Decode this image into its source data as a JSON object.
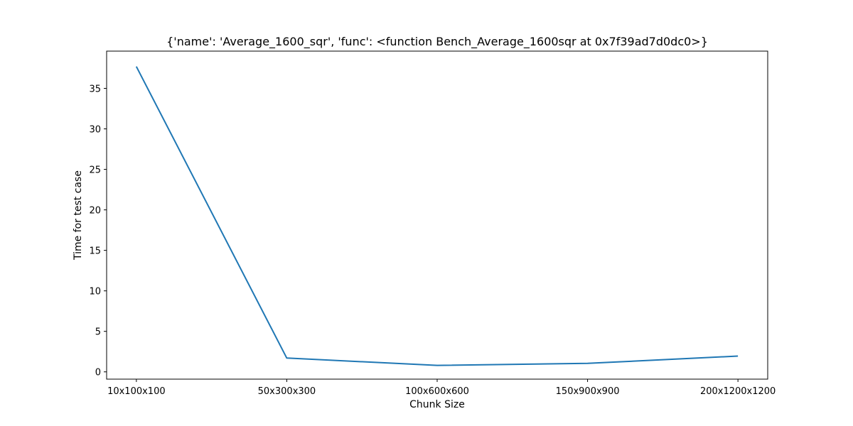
{
  "chart_data": {
    "type": "line",
    "title": "{'name': 'Average_1600_sqr', 'func': <function Bench_Average_1600sqr at 0x7f39ad7d0dc0>}",
    "xlabel": "Chunk Size",
    "ylabel": "Time for test case",
    "categories": [
      "10x100x100",
      "50x300x300",
      "100x600x600",
      "150x900x900",
      "200x1200x1200"
    ],
    "series": [
      {
        "values": [
          37.7,
          1.7,
          0.8,
          1.05,
          1.95
        ],
        "color": "#1f77b4"
      }
    ],
    "yticks": [
      0,
      5,
      10,
      15,
      20,
      25,
      30,
      35
    ],
    "ylim": [
      -0.9,
      39.6
    ],
    "grid": false,
    "legend": false
  }
}
